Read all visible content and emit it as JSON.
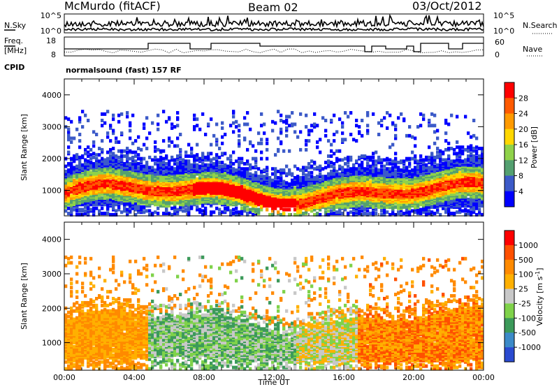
{
  "header": {
    "station": "McMurdo (fitACF)",
    "beam": "Beam 02",
    "date": "03/Oct/2012",
    "cpid_label": "CPID",
    "cpid_text": "normalsound (fast) 157 RF"
  },
  "noise_panel": {
    "left_label": "N.Sky",
    "right_label": "N.Search",
    "left_ticks": [
      "10^5",
      "10^0"
    ],
    "right_ticks": [
      "10^5",
      "10^0"
    ]
  },
  "freq_panel": {
    "left_label_1": "Freq.",
    "left_label_2": "[MHz]",
    "right_label": "Nave",
    "left_ticks": [
      "18",
      "8"
    ],
    "right_ticks": [
      "60",
      "0"
    ]
  },
  "chart_data": [
    {
      "type": "heatmap",
      "name": "power",
      "ylabel": "Slant Range [km]",
      "xlabel": "",
      "x_ticks": [],
      "y_ticks": [
        "1000",
        "2000",
        "3000",
        "4000"
      ],
      "ylim": [
        200,
        4500
      ],
      "xlim": [
        "00:00",
        "24:00"
      ],
      "colorbar": {
        "label": "Power [dB]",
        "ticks": [
          "4",
          "8",
          "12",
          "16",
          "20",
          "24",
          "28"
        ],
        "colors": [
          "#0000ff",
          "#3c5ac8",
          "#54a070",
          "#8fd24a",
          "#ffd700",
          "#ff9a00",
          "#ff5a00",
          "#ff0000"
        ]
      }
    },
    {
      "type": "heatmap",
      "name": "velocity",
      "ylabel": "Slant Range [km]",
      "xlabel": "Time UT",
      "x_ticks": [
        "00:00",
        "04:00",
        "08:00",
        "12:00",
        "16:00",
        "20:00",
        "00:00"
      ],
      "y_ticks": [
        "1000",
        "2000",
        "3000",
        "4000"
      ],
      "ylim": [
        200,
        4500
      ],
      "xlim": [
        "00:00",
        "24:00"
      ],
      "colorbar": {
        "label": "Velocity [m s",
        "label_sup": "-1",
        "label_end": "]",
        "ticks": [
          "1000",
          "500",
          "100",
          "25",
          "-25",
          "-100",
          "-500",
          "-1000"
        ],
        "colors": [
          "#2a4ad0",
          "#3c8ac8",
          "#3c9a5a",
          "#7fd24a",
          "#c8c8c8",
          "#ffb000",
          "#ff8a00",
          "#ff5000",
          "#ff0000"
        ]
      }
    }
  ]
}
